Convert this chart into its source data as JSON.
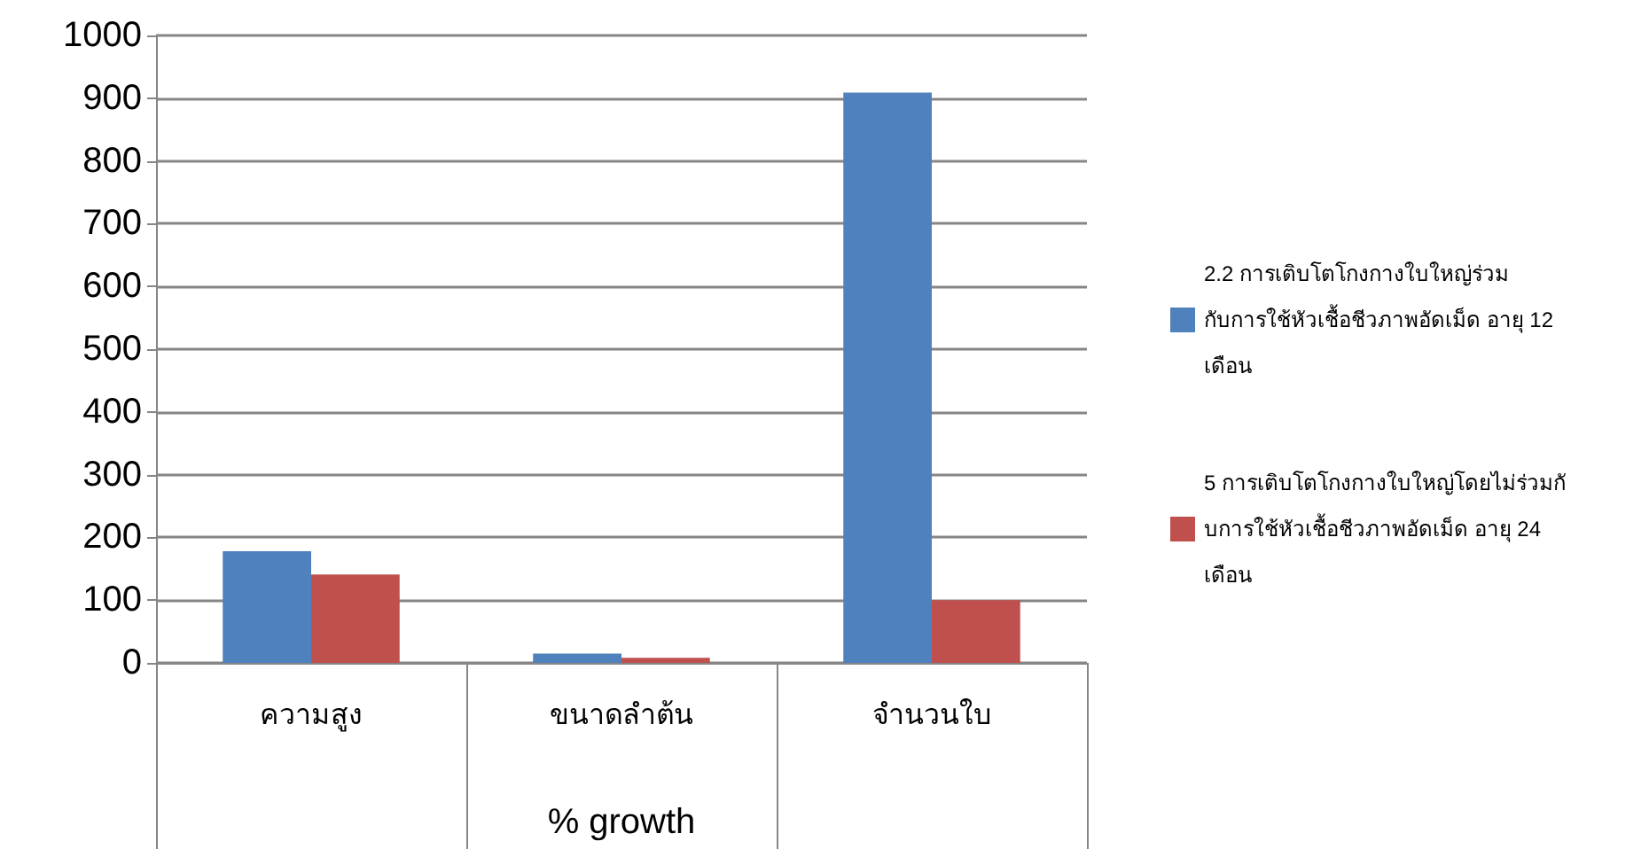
{
  "chart_data": {
    "type": "bar",
    "xlabel": "% growth",
    "categories": [
      "ความสูง",
      "ขนาดลำต้น",
      "จำนวนใบ"
    ],
    "series": [
      {
        "name": "2.2 การเติบโตโกงกางใบใหญ่ร่วม กับการใช้หัวเชื้อชีวภาพอัดเม็ด อายุ 12 เดือน",
        "color": "#4f81bd",
        "values": [
          178,
          15,
          909
        ]
      },
      {
        "name": "5 การเติบโตโกงกางใบใหญ่โดยไม่ร่วมกับการใช้หัวเชื้อชีวภาพอัดเม็ด อายุ 24 เดือน",
        "color": "#c0504d",
        "values": [
          141,
          8,
          100
        ]
      }
    ],
    "ylim": [
      0,
      1000
    ],
    "yticks": [
      0,
      100,
      200,
      300,
      400,
      500,
      600,
      700,
      800,
      900,
      1000
    ],
    "grid": "y",
    "legend": "right"
  }
}
